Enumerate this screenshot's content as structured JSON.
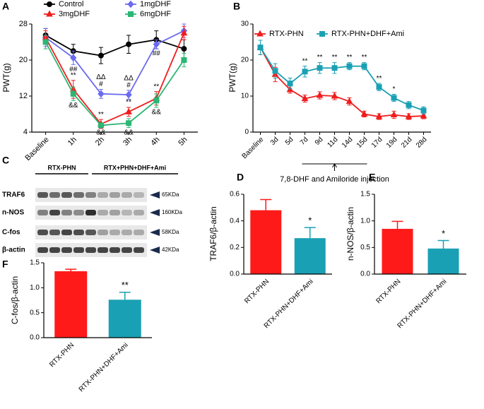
{
  "chart_data": [
    {
      "type": "line",
      "label": "A",
      "ylabel": "PWT(g)",
      "categories": [
        "Baseline",
        "1h",
        "2h",
        "3h",
        "4h",
        "5h"
      ],
      "ylim": [
        4,
        28
      ],
      "yticks": [
        4,
        12,
        20,
        28
      ],
      "series": [
        {
          "name": "Control",
          "color": "#000000",
          "marker": "circle",
          "values": [
            25.5,
            22,
            21,
            23.5,
            24.5,
            22.5
          ],
          "errors": [
            1.5,
            1.5,
            1.8,
            2,
            2,
            2
          ]
        },
        {
          "name": "1mgDHF",
          "color": "#6b6bf0",
          "marker": "diamond",
          "values": [
            25,
            20.5,
            12.5,
            12.3,
            23.5,
            26.5
          ],
          "errors": [
            2,
            1.5,
            1,
            1,
            1,
            1.5
          ]
        },
        {
          "name": "3mgDHF",
          "color": "#f01c1c",
          "marker": "triangle",
          "values": [
            25,
            13.5,
            5.8,
            8.5,
            11.5,
            26
          ],
          "errors": [
            1.5,
            2,
            1,
            1,
            1.5,
            1.5
          ]
        },
        {
          "name": "6mgDHF",
          "color": "#2bb673",
          "marker": "square",
          "values": [
            24,
            12.5,
            5.5,
            6,
            11,
            20
          ],
          "errors": [
            1.5,
            1.5,
            0.5,
            1,
            1.5,
            1.5
          ]
        }
      ],
      "annotations": [
        {
          "x": "1h",
          "series": "1mgDHF",
          "side": "below",
          "text": "##"
        },
        {
          "x": "1h",
          "series": "3mgDHF",
          "side": "above",
          "text": "**"
        },
        {
          "x": "1h",
          "series": "6mgDHF",
          "side": "below",
          "text": "&&"
        },
        {
          "x": "2h",
          "series": "1mgDHF",
          "side": "above",
          "text": "#"
        },
        {
          "x": "2h",
          "series": "1mgDHF",
          "side": "above",
          "text": "ΔΔ"
        },
        {
          "x": "2h",
          "series": "3mgDHF",
          "side": "above",
          "text": "**"
        },
        {
          "x": "2h",
          "series": "6mgDHF",
          "side": "below",
          "text": "&&"
        },
        {
          "x": "3h",
          "series": "1mgDHF",
          "side": "above",
          "text": "#"
        },
        {
          "x": "3h",
          "series": "1mgDHF",
          "side": "above",
          "text": "ΔΔ"
        },
        {
          "x": "3h",
          "series": "3mgDHF",
          "side": "above",
          "text": "**"
        },
        {
          "x": "3h",
          "series": "6mgDHF",
          "side": "below",
          "text": "&&"
        },
        {
          "x": "4h",
          "series": "1mgDHF",
          "side": "below",
          "text": "##"
        },
        {
          "x": "4h",
          "series": "3mgDHF",
          "side": "above",
          "text": "**"
        },
        {
          "x": "4h",
          "series": "6mgDHF",
          "side": "below",
          "text": "&&"
        }
      ]
    },
    {
      "type": "line",
      "label": "B",
      "ylabel": "PWT(g)",
      "categories": [
        "Baseline",
        "3d",
        "5d",
        "7d",
        "9d",
        "11d",
        "14d",
        "15d",
        "17d",
        "19d",
        "21d",
        "28d"
      ],
      "ylim": [
        0,
        30
      ],
      "yticks": [
        0,
        10,
        20,
        30
      ],
      "series": [
        {
          "name": "RTX-PHN",
          "color": "#f01c1c",
          "marker": "triangle",
          "values": [
            23.5,
            16,
            11.8,
            9.3,
            10.2,
            10,
            8.5,
            5,
            4.3,
            4.8,
            4.3,
            4.5
          ],
          "errors": [
            2,
            2,
            1,
            1,
            1,
            1,
            1,
            0.8,
            0.8,
            1,
            0.8,
            0.8
          ]
        },
        {
          "name": "RTX-PHN+DHF+Ami",
          "color": "#1aa0b4",
          "marker": "square",
          "values": [
            23.5,
            17,
            13.5,
            16.8,
            17.8,
            17.8,
            18.3,
            18.3,
            12.5,
            9.5,
            7.5,
            6
          ],
          "errors": [
            2,
            2,
            1.5,
            1.5,
            1.5,
            1.5,
            1,
            1,
            1,
            1,
            1,
            1
          ]
        }
      ],
      "annotations": [
        {
          "x": "7d",
          "series": "RTX-PHN+DHF+Ami",
          "side": "above",
          "text": "**"
        },
        {
          "x": "9d",
          "series": "RTX-PHN+DHF+Ami",
          "side": "above",
          "text": "**"
        },
        {
          "x": "11d",
          "series": "RTX-PHN+DHF+Ami",
          "side": "above",
          "text": "**"
        },
        {
          "x": "14d",
          "series": "RTX-PHN+DHF+Ami",
          "side": "above",
          "text": "**"
        },
        {
          "x": "15d",
          "series": "RTX-PHN+DHF+Ami",
          "side": "above",
          "text": "**"
        },
        {
          "x": "17d",
          "series": "RTX-PHN+DHF+Ami",
          "side": "above",
          "text": "**"
        },
        {
          "x": "19d",
          "series": "RTX-PHN+DHF+Ami",
          "side": "above",
          "text": "*"
        }
      ],
      "note": "7,8-DHF and Amiloride injection"
    },
    {
      "type": "bar",
      "label": "D",
      "ylabel": "TRAF6/β-actin",
      "categories": [
        "RTX-PHN",
        "RTX-PHN+DHF+Ami"
      ],
      "colors": [
        "#ff1a1a",
        "#1aa0b4"
      ],
      "values": [
        0.48,
        0.27
      ],
      "errors": [
        0.08,
        0.08
      ],
      "ylim": [
        0,
        0.6
      ],
      "yticks": [
        {
          "value": 0,
          "label": "0.0"
        },
        0.2,
        0.4,
        0.6
      ],
      "annotations": [
        {
          "x": "RTX-PHN+DHF+Ami",
          "text": "*"
        }
      ]
    },
    {
      "type": "bar",
      "label": "E",
      "ylabel": "n-NOS/β-actin",
      "categories": [
        "RTX-PHN",
        "RTX-PHN+DHF+Ami"
      ],
      "colors": [
        "#ff1a1a",
        "#1aa0b4"
      ],
      "values": [
        0.85,
        0.48
      ],
      "errors": [
        0.14,
        0.15
      ],
      "ylim": [
        0,
        1.5
      ],
      "yticks": [
        {
          "value": 0,
          "label": "0.0"
        },
        0.5,
        {
          "value": 1,
          "label": "1.0"
        },
        1.5
      ],
      "annotations": [
        {
          "x": "RTX-PHN+DHF+Ami",
          "text": "*"
        }
      ]
    },
    {
      "type": "bar",
      "label": "F",
      "ylabel": "C-fos/β-actin",
      "categories": [
        "RTX-PHN",
        "RTX-PHN+DHF+Ami"
      ],
      "colors": [
        "#ff1a1a",
        "#1aa0b4"
      ],
      "values": [
        1.33,
        0.76
      ],
      "errors": [
        0.04,
        0.15
      ],
      "ylim": [
        0,
        1.5
      ],
      "yticks": [
        {
          "value": 0,
          "label": "0.0"
        },
        0.5,
        {
          "value": 1,
          "label": "1.0"
        },
        1.5
      ],
      "annotations": [
        {
          "x": "RTX-PHN+DHF+Ami",
          "text": "**"
        }
      ]
    }
  ],
  "blot": {
    "label": "C",
    "groups": [
      "RTX-PHN",
      "RTX+PHN+DHF+Ami"
    ],
    "rows": [
      {
        "name": "TRAF6",
        "size": "65KDa"
      },
      {
        "name": "n-NOS",
        "size": "160KDa"
      },
      {
        "name": "C-fos",
        "size": "58KDa"
      },
      {
        "name": "β-actin",
        "size": "42KDa"
      }
    ]
  }
}
